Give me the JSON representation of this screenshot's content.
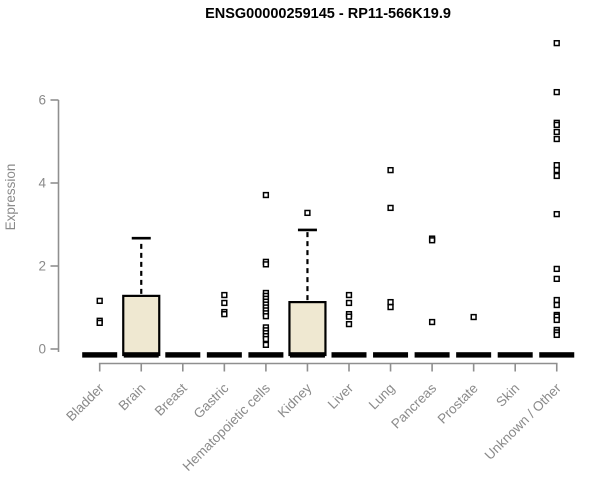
{
  "chart_data": {
    "type": "box",
    "title": "ENSG00000259145 - RP11-566K19.9",
    "ylabel": "Expression",
    "xlabel": "",
    "ylim": [
      0,
      7.5
    ],
    "yticks": [
      0,
      2,
      4,
      6
    ],
    "grid": false,
    "legend_position": "none",
    "colors": {
      "box_fill": "#efe8d1",
      "box_stroke": "#000000",
      "median": "#000000",
      "axis": "#8f8f8f",
      "tick_label": "#8a8a8a",
      "title": "#000000",
      "outlier_fill": "#ffffff",
      "outlier_stroke": "#000000"
    },
    "categories": [
      "Bladder",
      "Brain",
      "Breast",
      "Gastric",
      "Hematopoietic cells",
      "Kidney",
      "Liver",
      "Lung",
      "Pancreas",
      "Prostate",
      "Skin",
      "Unknown / Other"
    ],
    "boxes": [
      {
        "category": "Bladder",
        "q1": 0,
        "median": 0,
        "q3": 0,
        "whisker_low": 0,
        "whisker_high": 0,
        "outliers": [
          1.16,
          0.68,
          0.63
        ]
      },
      {
        "category": "Brain",
        "q1": 0,
        "median": 0,
        "q3": 1.28,
        "whisker_low": 0,
        "whisker_high": 2.67,
        "outliers": []
      },
      {
        "category": "Breast",
        "q1": 0,
        "median": 0,
        "q3": 0,
        "whisker_low": 0,
        "whisker_high": 0,
        "outliers": []
      },
      {
        "category": "Gastric",
        "q1": 0,
        "median": 0,
        "q3": 0,
        "whisker_low": 0,
        "whisker_high": 0,
        "outliers": [
          1.3,
          1.11,
          0.89,
          0.84
        ]
      },
      {
        "category": "Hematopoietic cells",
        "q1": 0,
        "median": 0,
        "q3": 0,
        "whisker_low": 0,
        "whisker_high": 0,
        "outliers": [
          3.71,
          2.1,
          2.04,
          1.35,
          1.28,
          1.21,
          1.14,
          1.07,
          1.0,
          0.93,
          0.86,
          0.79,
          0.52,
          0.45,
          0.38,
          0.31,
          0.24,
          0.1
        ]
      },
      {
        "category": "Kidney",
        "q1": 0,
        "median": 0,
        "q3": 1.13,
        "whisker_low": 0,
        "whisker_high": 2.87,
        "outliers": [
          3.28
        ]
      },
      {
        "category": "Liver",
        "q1": 0,
        "median": 0,
        "q3": 0,
        "whisker_low": 0,
        "whisker_high": 0,
        "outliers": [
          1.3,
          1.11,
          0.84,
          0.78,
          0.6
        ]
      },
      {
        "category": "Lung",
        "q1": 0,
        "median": 0,
        "q3": 0,
        "whisker_low": 0,
        "whisker_high": 0,
        "outliers": [
          4.31,
          3.4,
          1.13,
          1.01
        ]
      },
      {
        "category": "Pancreas",
        "q1": 0,
        "median": 0,
        "q3": 0,
        "whisker_low": 0,
        "whisker_high": 0,
        "outliers": [
          2.66,
          2.62,
          0.65
        ]
      },
      {
        "category": "Prostate",
        "q1": 0,
        "median": 0,
        "q3": 0,
        "whisker_low": 0,
        "whisker_high": 0,
        "outliers": [
          0.77
        ]
      },
      {
        "category": "Skin",
        "q1": 0,
        "median": 0,
        "q3": 0,
        "whisker_low": 0,
        "whisker_high": 0,
        "outliers": []
      },
      {
        "category": "Unknown / Other",
        "q1": 0,
        "median": 0,
        "q3": 0,
        "whisker_low": 0,
        "whisker_high": 0,
        "outliers": [
          7.37,
          6.19,
          5.45,
          5.4,
          5.23,
          5.06,
          4.43,
          4.31,
          4.17,
          3.25,
          1.93,
          1.69,
          1.18,
          1.06,
          0.82,
          0.78,
          0.7,
          0.46,
          0.4,
          0.34
        ]
      }
    ]
  }
}
